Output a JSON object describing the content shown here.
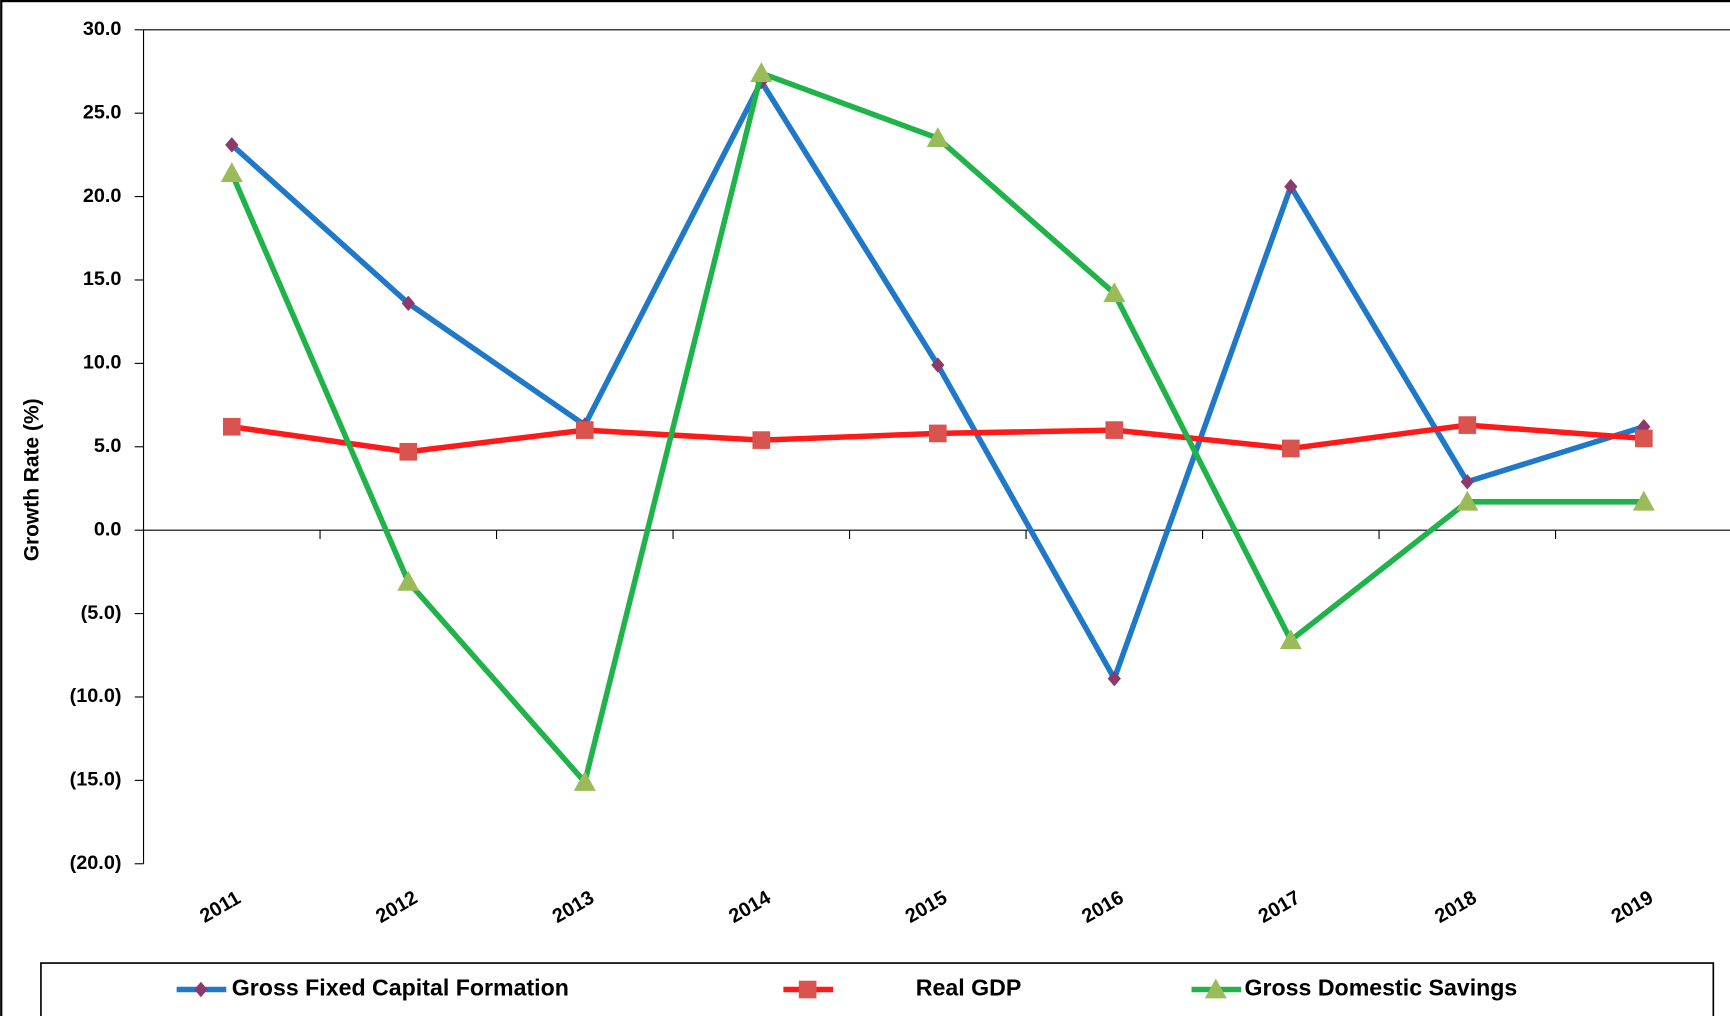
{
  "chart_data": {
    "type": "line",
    "y_label": "Growth Rate (%)",
    "categories": [
      "2011",
      "2012",
      "2013",
      "2014",
      "2015",
      "2016",
      "2017",
      "2018",
      "2019"
    ],
    "series": [
      {
        "name": "Gross Fixed Capital Formation",
        "color": "#1f78c8",
        "marker": "diamond",
        "marker_color": "#8b3a6b",
        "values": [
          23.1,
          13.6,
          6.3,
          26.9,
          9.9,
          -8.9,
          20.6,
          2.9,
          6.2
        ]
      },
      {
        "name": "Real GDP",
        "color": "#ff1a1a",
        "marker": "square",
        "marker_color": "#d9534f",
        "values": [
          6.2,
          4.7,
          6.0,
          5.4,
          5.8,
          6.0,
          4.9,
          6.3,
          5.5
        ]
      },
      {
        "name": "Gross Domestic Savings",
        "color": "#1fb34a",
        "marker": "triangle",
        "marker_color": "#9bbb59",
        "values": [
          21.4,
          -3.1,
          -15.1,
          27.4,
          23.5,
          14.2,
          -6.6,
          1.7,
          1.7
        ]
      }
    ],
    "ylim": [
      -20,
      30
    ],
    "yticks": [
      {
        "value": -20,
        "label": "(20.0)"
      },
      {
        "value": -15,
        "label": "(15.0)"
      },
      {
        "value": -10,
        "label": "(10.0)"
      },
      {
        "value": -5,
        "label": "(5.0)"
      },
      {
        "value": 0,
        "label": "0.0"
      },
      {
        "value": 5,
        "label": "5.0"
      },
      {
        "value": 10,
        "label": "10.0"
      },
      {
        "value": 15,
        "label": "15.0"
      },
      {
        "value": 20,
        "label": "20.0"
      },
      {
        "value": 25,
        "label": "25.0"
      },
      {
        "value": 30,
        "label": "30.0"
      }
    ],
    "grid": false,
    "legend": "bottom"
  }
}
